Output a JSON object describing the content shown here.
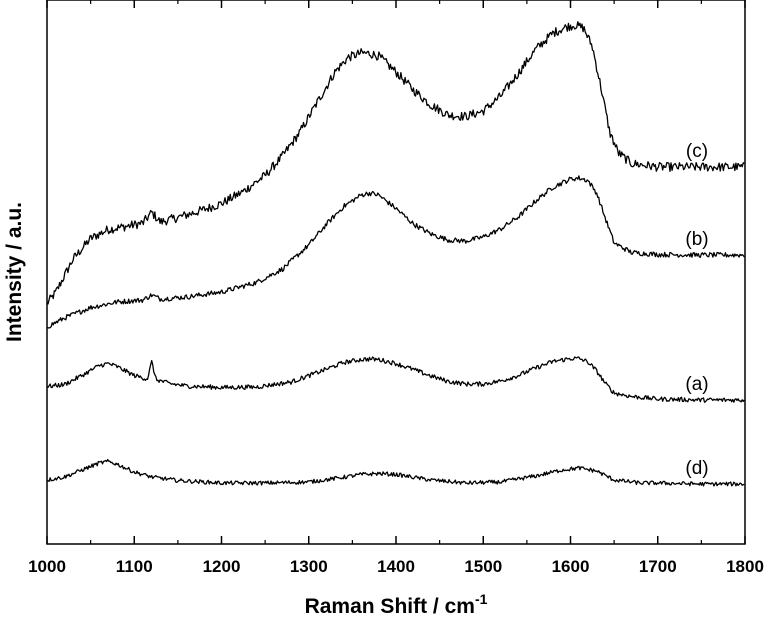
{
  "chart_data": {
    "type": "line",
    "title": "",
    "xlabel": "Raman Shift / cm",
    "xlabel_superscript": "-1",
    "ylabel": "Intensity / a.u.",
    "xlim": [
      1000,
      1800
    ],
    "ylim": [
      0,
      100
    ],
    "x_ticks": [
      "1000",
      "1100",
      "1200",
      "1300",
      "1400",
      "1500",
      "1600",
      "1700",
      "1800"
    ],
    "y_ticks_shown": false,
    "grid": false,
    "legend": "none",
    "series": [
      {
        "name": "(c)",
        "x": [
          1000,
          1010,
          1030,
          1050,
          1070,
          1090,
          1110,
          1120,
          1130,
          1150,
          1175,
          1200,
          1225,
          1250,
          1270,
          1290,
          1310,
          1330,
          1345,
          1360,
          1370,
          1380,
          1400,
          1420,
          1440,
          1460,
          1480,
          1500,
          1520,
          1540,
          1560,
          1580,
          1595,
          1605,
          1615,
          1625,
          1635,
          1645,
          1655,
          1670,
          1700,
          1750,
          1800
        ],
        "y": [
          43.3,
          45.5,
          52.2,
          56.3,
          58.1,
          58.7,
          59.4,
          61.5,
          59.6,
          60.5,
          61.8,
          63.3,
          65.7,
          68.9,
          72.8,
          77.6,
          83.6,
          89.6,
          92.5,
          93.4,
          93.3,
          92.8,
          89.6,
          86.0,
          83.0,
          81.0,
          80.7,
          81.8,
          84.8,
          89.3,
          94.1,
          97.4,
          98.6,
          99.0,
          98.4,
          94.7,
          86.5,
          77.5,
          73.4,
          71.3,
          70.6,
          70.6,
          70.6
        ]
      },
      {
        "name": "(b)",
        "x": [
          1000,
          1020,
          1050,
          1080,
          1110,
          1120,
          1130,
          1160,
          1200,
          1240,
          1270,
          1300,
          1320,
          1340,
          1360,
          1370,
          1380,
          1400,
          1420,
          1440,
          1460,
          1480,
          1500,
          1520,
          1540,
          1560,
          1580,
          1600,
          1610,
          1620,
          1630,
          1640,
          1650,
          1670,
          1700,
          1750,
          1800
        ],
        "y": [
          38.6,
          40.4,
          42.5,
          43.6,
          44.0,
          45.0,
          44.2,
          44.6,
          45.6,
          47.5,
          50.2,
          55.0,
          59.1,
          62.7,
          65.0,
          65.4,
          65.0,
          62.3,
          59.2,
          57.2,
          56.0,
          55.8,
          56.6,
          58.2,
          60.6,
          63.8,
          66.6,
          68.2,
          68.4,
          67.9,
          65.4,
          60.3,
          55.4,
          53.5,
          53.1,
          53.0,
          53.0
        ]
      },
      {
        "name": "(a)",
        "x": [
          1000,
          1020,
          1040,
          1060,
          1070,
          1080,
          1100,
          1115,
          1120,
          1125,
          1140,
          1160,
          1200,
          1240,
          1280,
          1310,
          1340,
          1360,
          1370,
          1380,
          1400,
          1420,
          1440,
          1460,
          1480,
          1500,
          1520,
          1540,
          1560,
          1580,
          1600,
          1610,
          1620,
          1630,
          1640,
          1650,
          1670,
          1700,
          1750,
          1800
        ],
        "y": [
          26.7,
          27.1,
          28.9,
          30.9,
          31.3,
          30.7,
          28.9,
          28.2,
          31.6,
          28.1,
          27.3,
          26.8,
          26.5,
          26.6,
          27.6,
          29.5,
          31.5,
          32.1,
          32.2,
          32.1,
          31.3,
          30.1,
          28.8,
          27.7,
          27.2,
          27.2,
          27.8,
          28.9,
          30.4,
          31.7,
          32.3,
          32.3,
          31.6,
          29.8,
          27.3,
          25.4,
          24.7,
          24.2,
          24.0,
          24.0
        ]
      },
      {
        "name": "(d)",
        "x": [
          1000,
          1020,
          1040,
          1060,
          1070,
          1080,
          1100,
          1120,
          1150,
          1200,
          1250,
          1300,
          1330,
          1360,
          1380,
          1400,
          1440,
          1480,
          1520,
          1560,
          1590,
          1610,
          1630,
          1650,
          1680,
          1700,
          1750,
          1800
        ],
        "y": [
          8.0,
          8.6,
          10.0,
          11.4,
          11.7,
          11.2,
          9.6,
          8.6,
          7.9,
          7.4,
          7.4,
          7.6,
          8.3,
          9.1,
          9.3,
          9.1,
          8.0,
          7.4,
          7.6,
          8.8,
          10.0,
          10.4,
          9.8,
          8.0,
          7.4,
          7.4,
          7.2,
          7.2
        ]
      }
    ]
  }
}
